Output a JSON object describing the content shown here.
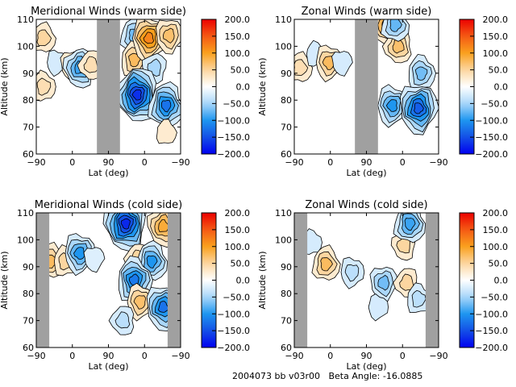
{
  "footer": {
    "run_id": "2004073 bb v03r00",
    "beta_angle_label": "Beta Angle:",
    "beta_angle_value": "-16.0885"
  },
  "chart_data": [
    {
      "type": "heatmap",
      "title": "Meridional Winds (warm side)",
      "xlabel": "Lat (deg)",
      "ylabel": "Altitude (km)",
      "x_ticks": [
        "-90",
        "0",
        "90",
        "0",
        "-90"
      ],
      "y_ticks": [
        "60",
        "70",
        "80",
        "90",
        "100",
        "110"
      ],
      "ylim": [
        60,
        110
      ],
      "colorbar": {
        "range": [
          -200,
          200
        ],
        "ticks": [
          "200.0",
          "150.0",
          "100.0",
          "50.0",
          "0.0",
          "-50.0",
          "-100.0",
          "-150.0",
          "-200.0"
        ]
      },
      "gaps": [
        [
          0.42,
          0.58
        ]
      ],
      "features": [
        {
          "x": 0.05,
          "alt": 103,
          "value": 60
        },
        {
          "x": 0.05,
          "alt": 85,
          "value": 40
        },
        {
          "x": 0.14,
          "alt": 94,
          "value": -30
        },
        {
          "x": 0.25,
          "alt": 93,
          "value": 50
        },
        {
          "x": 0.3,
          "alt": 92,
          "value": -90
        },
        {
          "x": 0.38,
          "alt": 93,
          "value": 40
        },
        {
          "x": 0.68,
          "alt": 104,
          "value": -70
        },
        {
          "x": 0.68,
          "alt": 95,
          "value": 80
        },
        {
          "x": 0.78,
          "alt": 103,
          "value": 120
        },
        {
          "x": 0.92,
          "alt": 104,
          "value": 70
        },
        {
          "x": 0.82,
          "alt": 92,
          "value": -60
        },
        {
          "x": 0.7,
          "alt": 82,
          "value": -170
        },
        {
          "x": 0.9,
          "alt": 78,
          "value": -130
        },
        {
          "x": 0.9,
          "alt": 68,
          "value": 30
        }
      ]
    },
    {
      "type": "heatmap",
      "title": "Zonal Winds (warm side)",
      "xlabel": "Lat (deg)",
      "ylabel": "Altitude (km)",
      "x_ticks": [
        "-90",
        "0",
        "90",
        "0",
        "-90"
      ],
      "y_ticks": [
        "60",
        "70",
        "80",
        "90",
        "100",
        "110"
      ],
      "ylim": [
        60,
        110
      ],
      "colorbar": {
        "range": [
          -200,
          200
        ],
        "ticks": [
          "200.0",
          "150.0",
          "100.0",
          "50.0",
          "0.0",
          "-50.0",
          "-100.0",
          "-150.0",
          "-200.0"
        ]
      },
      "gaps": [
        [
          0.42,
          0.58
        ]
      ],
      "features": [
        {
          "x": 0.04,
          "alt": 92,
          "value": 40
        },
        {
          "x": 0.15,
          "alt": 97,
          "value": -30
        },
        {
          "x": 0.24,
          "alt": 94,
          "value": 80
        },
        {
          "x": 0.33,
          "alt": 94,
          "value": -30
        },
        {
          "x": 0.64,
          "alt": 108,
          "value": 90
        },
        {
          "x": 0.72,
          "alt": 100,
          "value": 70
        },
        {
          "x": 0.7,
          "alt": 108,
          "value": -80
        },
        {
          "x": 0.88,
          "alt": 90,
          "value": -70
        },
        {
          "x": 0.68,
          "alt": 78,
          "value": -100
        },
        {
          "x": 0.86,
          "alt": 77,
          "value": -140
        }
      ]
    },
    {
      "type": "heatmap",
      "title": "Meridional Winds (cold side)",
      "xlabel": "Lat (deg)",
      "ylabel": "Altitude (km)",
      "x_ticks": [
        "-90",
        "0",
        "90",
        "0",
        "-90"
      ],
      "y_ticks": [
        "60",
        "70",
        "80",
        "90",
        "100",
        "110"
      ],
      "ylim": [
        60,
        110
      ],
      "colorbar": {
        "range": [
          -200,
          200
        ],
        "ticks": [
          "200.0",
          "150.0",
          "100.0",
          "50.0",
          "0.0",
          "-50.0",
          "-100.0",
          "-150.0",
          "-200.0"
        ]
      },
      "gaps": [
        [
          0.0,
          0.09
        ],
        [
          0.91,
          1.0
        ]
      ],
      "features": [
        {
          "x": 0.1,
          "alt": 92,
          "value": 80
        },
        {
          "x": 0.2,
          "alt": 92,
          "value": 60
        },
        {
          "x": 0.3,
          "alt": 95,
          "value": -110
        },
        {
          "x": 0.4,
          "alt": 93,
          "value": -20
        },
        {
          "x": 0.62,
          "alt": 106,
          "value": -180
        },
        {
          "x": 0.7,
          "alt": 93,
          "value": 50
        },
        {
          "x": 0.8,
          "alt": 92,
          "value": -110
        },
        {
          "x": 0.68,
          "alt": 85,
          "value": -120
        },
        {
          "x": 0.72,
          "alt": 77,
          "value": 70
        },
        {
          "x": 0.88,
          "alt": 75,
          "value": -130
        },
        {
          "x": 0.88,
          "alt": 105,
          "value": 90
        },
        {
          "x": 0.6,
          "alt": 70,
          "value": -40
        }
      ]
    },
    {
      "type": "heatmap",
      "title": "Zonal Winds (cold side)",
      "xlabel": "Lat (deg)",
      "ylabel": "Altitude (km)",
      "x_ticks": [
        "-90",
        "0",
        "90",
        "0",
        "-90"
      ],
      "y_ticks": [
        "60",
        "70",
        "80",
        "90",
        "100",
        "110"
      ],
      "ylim": [
        60,
        110
      ],
      "colorbar": {
        "range": [
          -200,
          200
        ],
        "ticks": [
          "200.0",
          "150.0",
          "100.0",
          "50.0",
          "0.0",
          "-50.0",
          "-100.0",
          "-150.0",
          "-200.0"
        ]
      },
      "gaps": [
        [
          0.0,
          0.09
        ],
        [
          0.91,
          1.0
        ]
      ],
      "features": [
        {
          "x": 0.22,
          "alt": 91,
          "value": 80
        },
        {
          "x": 0.12,
          "alt": 99,
          "value": -30
        },
        {
          "x": 0.4,
          "alt": 88,
          "value": -40
        },
        {
          "x": 0.62,
          "alt": 84,
          "value": -70
        },
        {
          "x": 0.76,
          "alt": 98,
          "value": 60
        },
        {
          "x": 0.78,
          "alt": 84,
          "value": 60
        },
        {
          "x": 0.8,
          "alt": 106,
          "value": -90
        },
        {
          "x": 0.86,
          "alt": 78,
          "value": -40
        },
        {
          "x": 0.58,
          "alt": 75,
          "value": -30
        }
      ]
    }
  ]
}
